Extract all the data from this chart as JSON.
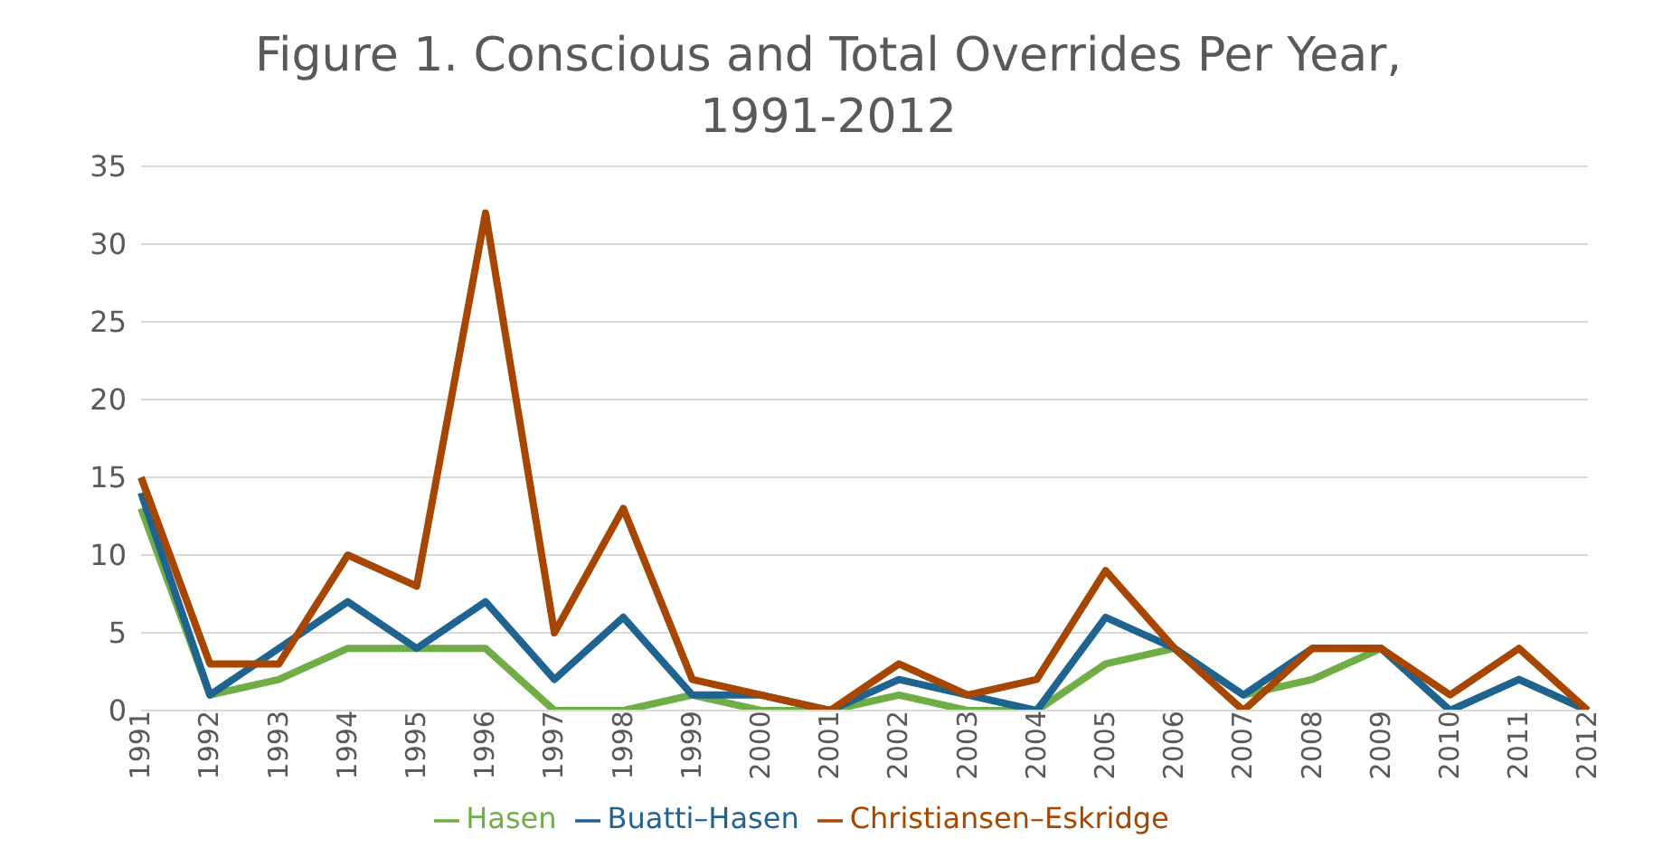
{
  "chart_data": {
    "type": "line",
    "title": "Figure 1. Conscious and Total Overrides Per Year, 1991-2012",
    "categories": [
      "1991",
      "1992",
      "1993",
      "1994",
      "1995",
      "1996",
      "1997",
      "1998",
      "1999",
      "2000",
      "2001",
      "2002",
      "2003",
      "2004",
      "2005",
      "2006",
      "2007",
      "2008",
      "2009",
      "2010",
      "2011",
      "2012"
    ],
    "series": [
      {
        "name": "Hasen",
        "color": "#70ad47",
        "values": [
          13,
          1,
          2,
          4,
          4,
          4,
          0,
          0,
          1,
          0,
          0,
          1,
          0,
          0,
          3,
          4,
          1,
          2,
          4,
          0,
          2,
          0
        ]
      },
      {
        "name": "Buatti–Hasen",
        "color": "#1f6391",
        "values": [
          14,
          1,
          4,
          7,
          4,
          7,
          2,
          6,
          1,
          1,
          0,
          2,
          1,
          0,
          6,
          4,
          1,
          4,
          4,
          0,
          2,
          0
        ]
      },
      {
        "name": "Christiansen–Eskridge",
        "color": "#a64600",
        "values": [
          15,
          3,
          3,
          10,
          8,
          32,
          5,
          13,
          2,
          1,
          0,
          3,
          1,
          2,
          9,
          4,
          0,
          4,
          4,
          1,
          4,
          0
        ]
      }
    ],
    "ylim": [
      0,
      35
    ],
    "yticks": [
      0,
      5,
      10,
      15,
      20,
      25,
      30,
      35
    ],
    "grid": "y",
    "legend": "bottom",
    "marker": "none",
    "line_style": "solid"
  }
}
